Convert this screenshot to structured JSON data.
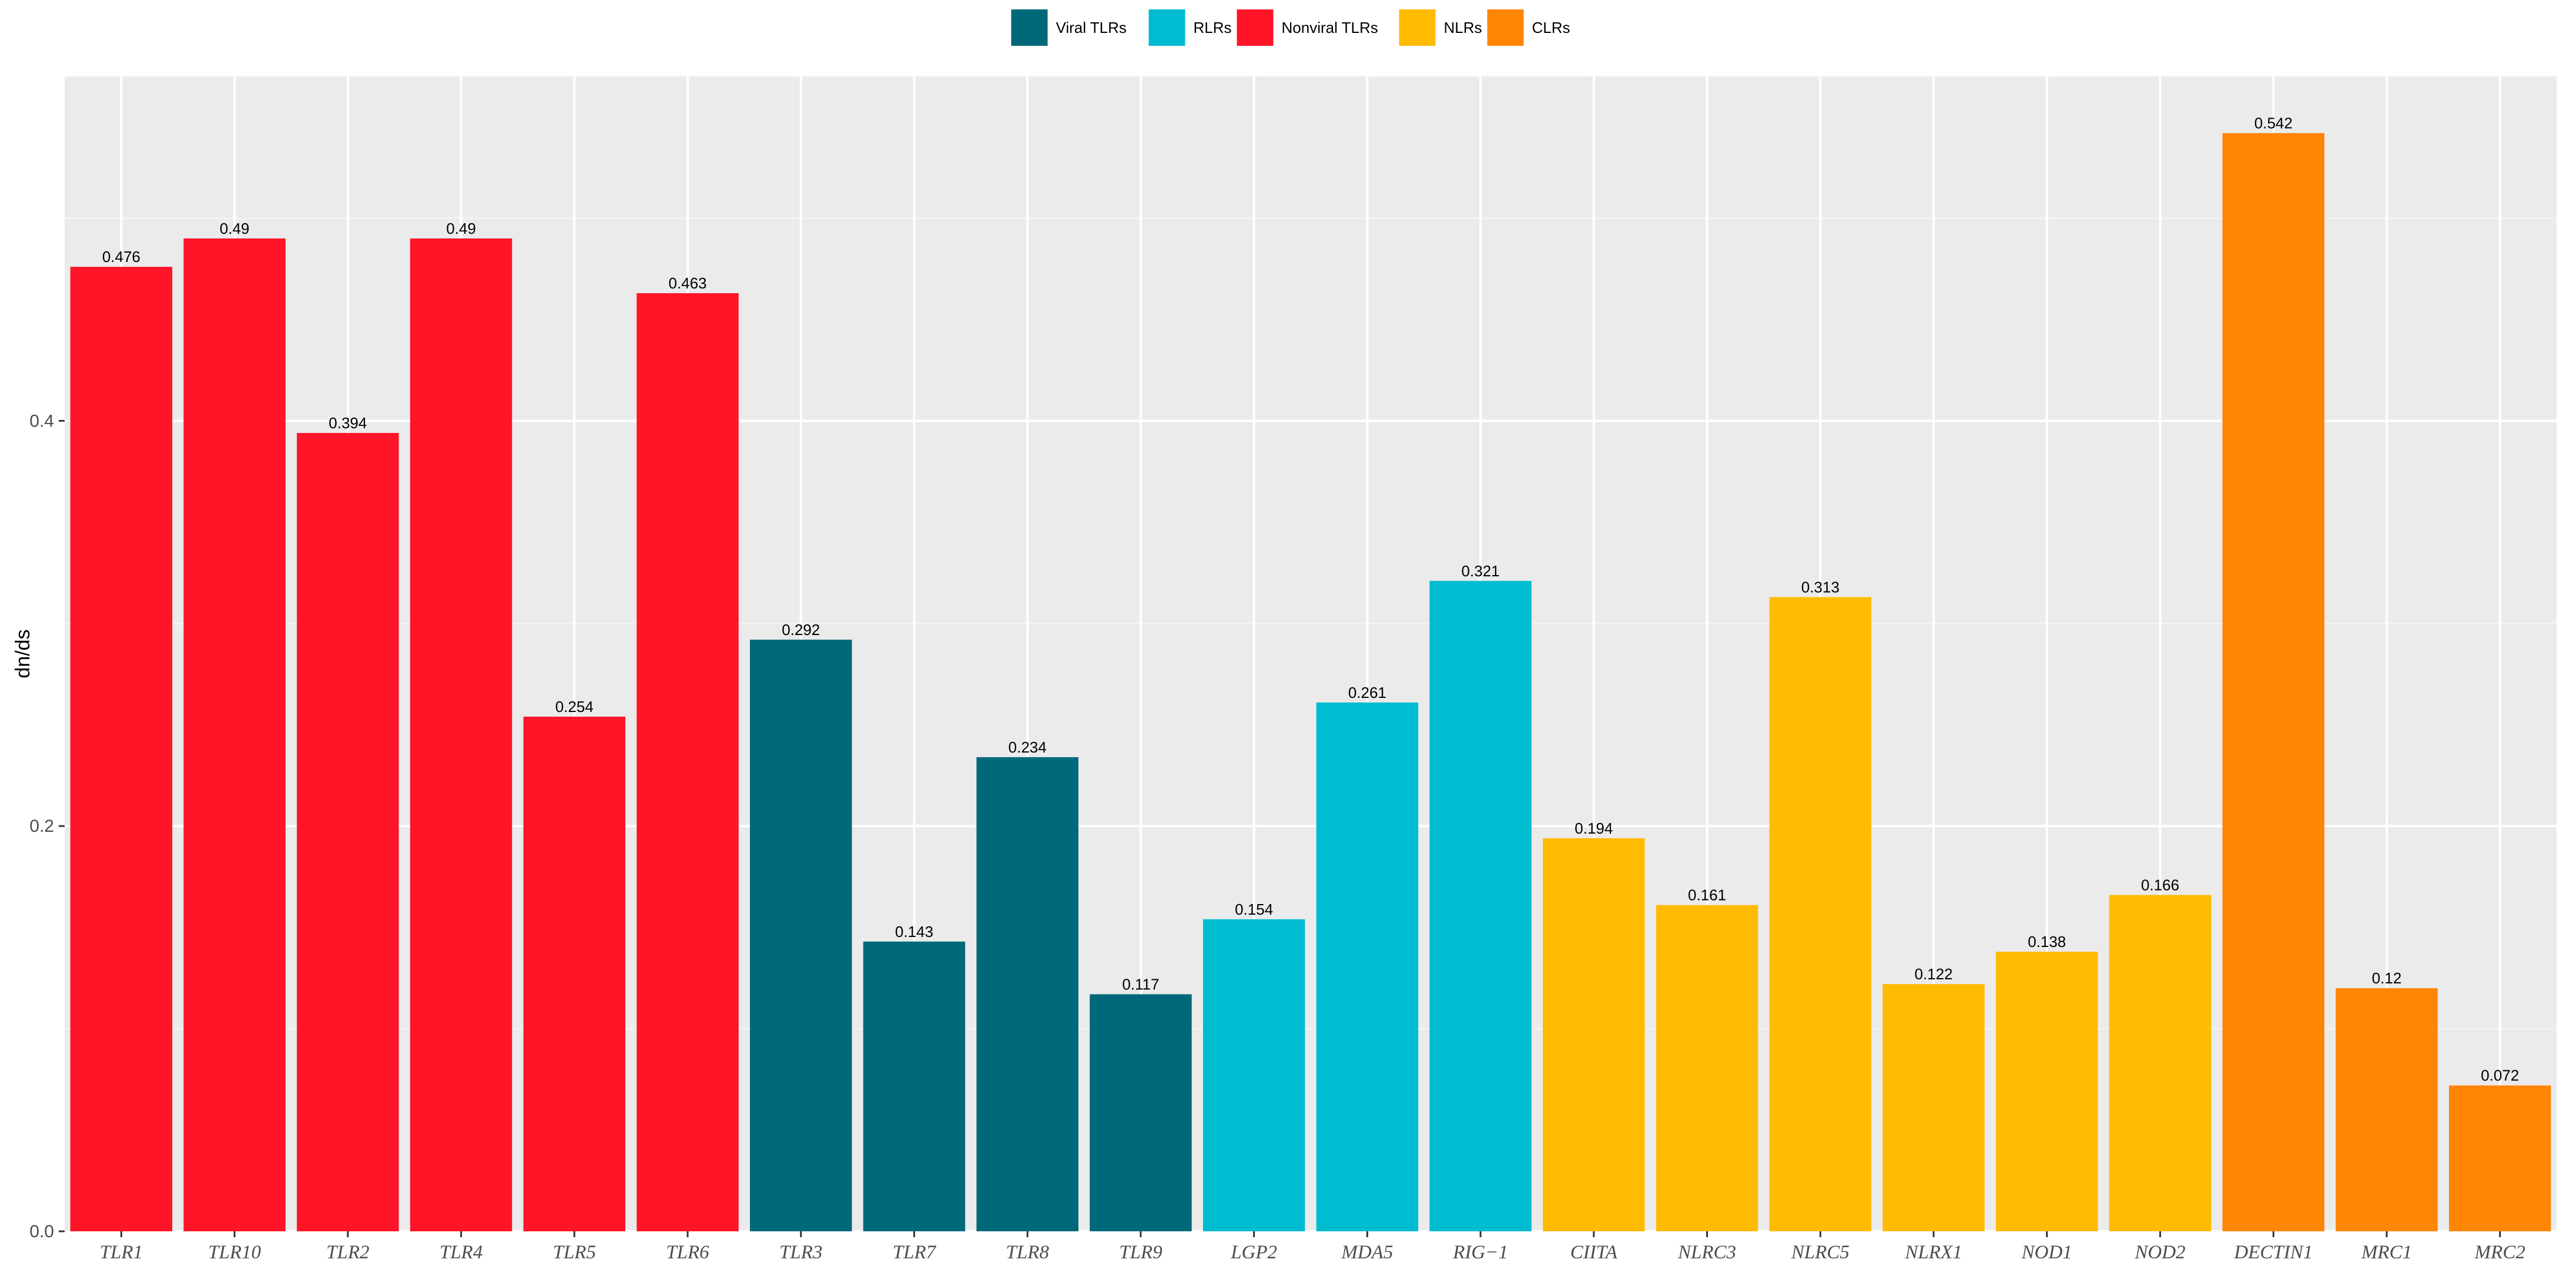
{
  "chart_data": {
    "type": "bar",
    "title": "",
    "xlabel": "",
    "ylabel": "dn/ds",
    "ylim": [
      0,
      0.57
    ],
    "yticks": [
      0.0,
      0.2,
      0.4
    ],
    "ytick_labels": [
      "0.0",
      "0.2",
      "0.4"
    ],
    "grid": true,
    "legend_position": "top",
    "groups": [
      {
        "name": "Viral TLRs",
        "color": "#006979"
      },
      {
        "name": "RLRs",
        "color": "#00BCD0"
      },
      {
        "name": "Nonviral TLRs",
        "color": "#FF1428"
      },
      {
        "name": "NLRs",
        "color": "#FFBB00"
      },
      {
        "name": "CLRs",
        "color": "#FF8505"
      }
    ],
    "categories": [
      "TLR1",
      "TLR10",
      "TLR2",
      "TLR4",
      "TLR5",
      "TLR6",
      "TLR3",
      "TLR7",
      "TLR8",
      "TLR9",
      "LGP2",
      "MDA5",
      "RIG−1",
      "CIITA",
      "NLRC3",
      "NLRC5",
      "NLRX1",
      "NOD1",
      "NOD2",
      "DECTIN1",
      "MRC1",
      "MRC2"
    ],
    "values": [
      0.476,
      0.49,
      0.394,
      0.49,
      0.254,
      0.463,
      0.292,
      0.143,
      0.234,
      0.117,
      0.154,
      0.261,
      0.321,
      0.194,
      0.161,
      0.313,
      0.122,
      0.138,
      0.166,
      0.542,
      0.12,
      0.072
    ],
    "value_labels": [
      "0.476",
      "0.49",
      "0.394",
      "0.49",
      "0.254",
      "0.463",
      "0.292",
      "0.143",
      "0.234",
      "0.117",
      "0.154",
      "0.261",
      "0.321",
      "0.194",
      "0.161",
      "0.313",
      "0.122",
      "0.138",
      "0.166",
      "0.542",
      "0.12",
      "0.072"
    ],
    "bar_groups": [
      "Nonviral TLRs",
      "Nonviral TLRs",
      "Nonviral TLRs",
      "Nonviral TLRs",
      "Nonviral TLRs",
      "Nonviral TLRs",
      "Viral TLRs",
      "Viral TLRs",
      "Viral TLRs",
      "Viral TLRs",
      "RLRs",
      "RLRs",
      "RLRs",
      "NLRs",
      "NLRs",
      "NLRs",
      "NLRs",
      "NLRs",
      "NLRs",
      "CLRs",
      "CLRs",
      "CLRs"
    ]
  }
}
